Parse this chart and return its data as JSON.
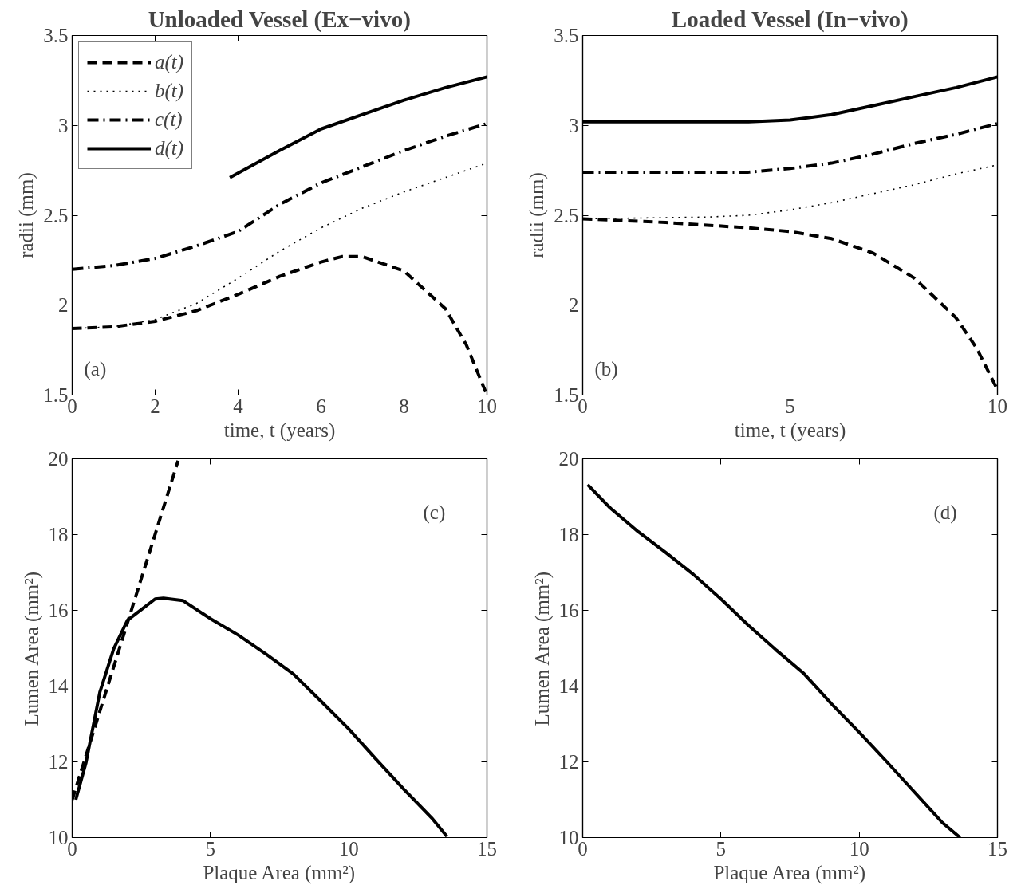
{
  "chart_data": [
    {
      "type": "line",
      "title": "Unloaded Vessel (Ex−vivo)",
      "xlabel": "time, t (years)",
      "ylabel": "radii (mm)",
      "xlim": [
        0,
        10
      ],
      "ylim": [
        1.5,
        3.5
      ],
      "xticks": [
        0,
        2,
        4,
        6,
        8,
        10
      ],
      "yticks": [
        1.5,
        2,
        2.5,
        3,
        3.5
      ],
      "legend": "top left",
      "grid": false,
      "annotations": [
        "(a)"
      ],
      "series": [
        {
          "name": "a(t)",
          "color": "#000000",
          "line_style": "dashed",
          "x": [
            0,
            1,
            2,
            3,
            4,
            5,
            6,
            6.5,
            7,
            8,
            9,
            9.5,
            10
          ],
          "values": [
            1.87,
            1.88,
            1.91,
            1.97,
            2.06,
            2.16,
            2.24,
            2.27,
            2.27,
            2.19,
            1.98,
            1.78,
            1.5
          ]
        },
        {
          "name": "b(t)",
          "color": "#000000",
          "line_style": "dotted",
          "x": [
            0,
            1,
            2,
            3,
            4,
            5,
            6,
            7,
            8,
            9,
            10
          ],
          "values": [
            1.87,
            1.88,
            1.92,
            2.01,
            2.15,
            2.3,
            2.43,
            2.54,
            2.63,
            2.71,
            2.79
          ]
        },
        {
          "name": "c(t)",
          "color": "#000000",
          "line_style": "dashdot",
          "x": [
            0,
            1,
            2,
            3,
            4,
            5,
            6,
            7,
            8,
            9,
            10
          ],
          "values": [
            2.2,
            2.22,
            2.26,
            2.33,
            2.41,
            2.56,
            2.68,
            2.77,
            2.86,
            2.94,
            3.01
          ]
        },
        {
          "name": "d(t)",
          "color": "#000000",
          "line_style": "solid",
          "x": [
            3.8,
            5,
            6,
            7,
            8,
            9,
            10
          ],
          "values": [
            2.71,
            2.86,
            2.98,
            3.06,
            3.14,
            3.21,
            3.27
          ]
        }
      ]
    },
    {
      "type": "line",
      "title": "Loaded Vessel (In−vivo)",
      "xlabel": "time, t (years)",
      "ylabel": "radii (mm)",
      "xlim": [
        0,
        10
      ],
      "ylim": [
        1.5,
        3.5
      ],
      "xticks": [
        0,
        5,
        10
      ],
      "yticks": [
        1.5,
        2,
        2.5,
        3,
        3.5
      ],
      "grid": false,
      "annotations": [
        "(b)"
      ],
      "series": [
        {
          "color": "#000000",
          "line_style": "dashed",
          "x": [
            0,
            2,
            4,
            5,
            6,
            7,
            8,
            9,
            9.5,
            10
          ],
          "values": [
            2.48,
            2.46,
            2.43,
            2.41,
            2.37,
            2.29,
            2.15,
            1.93,
            1.76,
            1.53
          ]
        },
        {
          "color": "#000000",
          "line_style": "dotted",
          "x": [
            0,
            3,
            4,
            5,
            6,
            7,
            8,
            9,
            10
          ],
          "values": [
            2.48,
            2.49,
            2.5,
            2.53,
            2.57,
            2.62,
            2.67,
            2.73,
            2.78
          ]
        },
        {
          "color": "#000000",
          "line_style": "dashdot",
          "x": [
            0,
            4,
            5,
            6,
            7,
            8,
            9,
            10
          ],
          "values": [
            2.74,
            2.74,
            2.76,
            2.79,
            2.84,
            2.9,
            2.95,
            3.01
          ]
        },
        {
          "color": "#000000",
          "line_style": "solid",
          "x": [
            0,
            4,
            5,
            6,
            7,
            8,
            9,
            10
          ],
          "values": [
            3.02,
            3.02,
            3.03,
            3.06,
            3.11,
            3.16,
            3.21,
            3.27
          ]
        }
      ]
    },
    {
      "type": "line",
      "xlabel": "Plaque Area (mm²)",
      "ylabel": "Lumen Area (mm²)",
      "xlim": [
        0,
        15
      ],
      "ylim": [
        10,
        20
      ],
      "xticks": [
        0,
        5,
        10,
        15
      ],
      "yticks": [
        10,
        12,
        14,
        16,
        18,
        20
      ],
      "grid": false,
      "annotations": [
        "(c)"
      ],
      "series": [
        {
          "color": "#000000",
          "line_style": "solid",
          "x": [
            0.13,
            0.5,
            1,
            1.5,
            2,
            3,
            3.3,
            4,
            5,
            6,
            7,
            8,
            9,
            10,
            11,
            12,
            13,
            13.55
          ],
          "values": [
            11.0,
            11.98,
            13.84,
            14.98,
            15.74,
            16.3,
            16.32,
            16.26,
            15.78,
            15.35,
            14.85,
            14.32,
            13.6,
            12.87,
            12.06,
            11.27,
            10.52,
            10.03
          ]
        },
        {
          "color": "#000000",
          "line_style": "dashed",
          "x": [
            0,
            3.83
          ],
          "values": [
            11.0,
            19.95
          ]
        }
      ]
    },
    {
      "type": "line",
      "xlabel": "Plaque Area (mm²)",
      "ylabel": "Lumen Area (mm²)",
      "xlim": [
        0,
        15
      ],
      "ylim": [
        10,
        20
      ],
      "xticks": [
        0,
        5,
        10,
        15
      ],
      "yticks": [
        10,
        12,
        14,
        16,
        18,
        20
      ],
      "grid": false,
      "annotations": [
        "(d)"
      ],
      "series": [
        {
          "color": "#000000",
          "line_style": "solid",
          "x": [
            0.18,
            1,
            2,
            3,
            4,
            5,
            6,
            7,
            8,
            9,
            10,
            11,
            12,
            13,
            13.65
          ],
          "values": [
            19.32,
            18.7,
            18.08,
            17.53,
            16.95,
            16.3,
            15.6,
            14.95,
            14.33,
            13.53,
            12.78,
            12.0,
            11.2,
            10.4,
            10.0
          ]
        }
      ]
    }
  ]
}
